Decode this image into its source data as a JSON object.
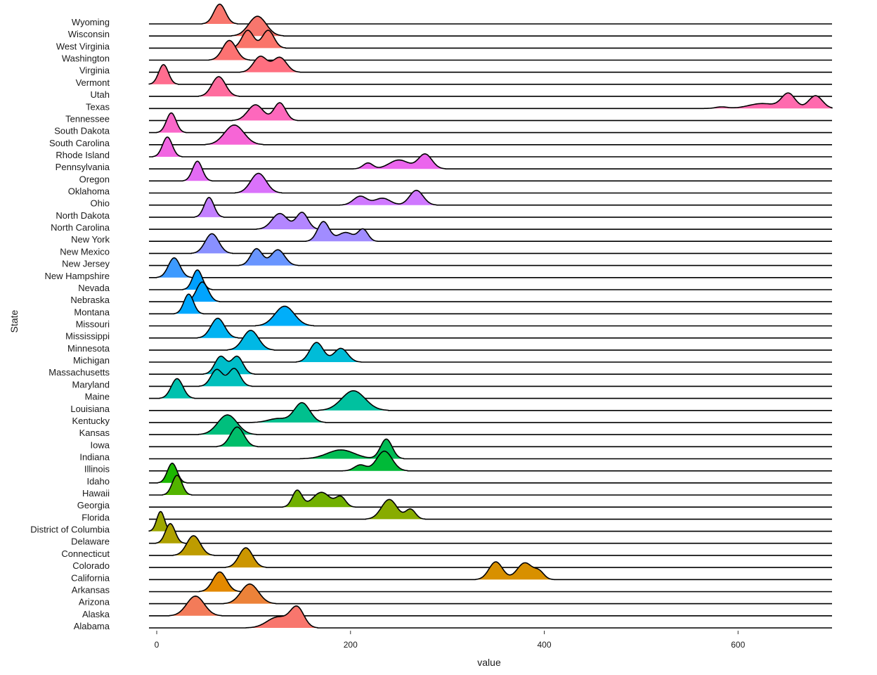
{
  "chart_data": {
    "type": "ridgeline",
    "title": "",
    "xlabel": "value",
    "ylabel": "State",
    "xlim": [
      -8,
      697
    ],
    "xticks": [
      0,
      200,
      400,
      600
    ],
    "grid": false,
    "legend": "none",
    "series": [
      {
        "name": "Alabama",
        "color": "#F8766D",
        "peaks": [
          [
            125,
            0.55,
            11
          ],
          [
            145,
            1.0,
            7
          ]
        ]
      },
      {
        "name": "Alaska",
        "color": "#F37B59",
        "peaks": [
          [
            40,
            1.0,
            9
          ]
        ]
      },
      {
        "name": "Arizona",
        "color": "#EC8239",
        "peaks": [
          [
            96,
            1.0,
            9
          ]
        ]
      },
      {
        "name": "Arkansas",
        "color": "#E38900",
        "peaks": [
          [
            65,
            1.0,
            7
          ]
        ]
      },
      {
        "name": "California",
        "color": "#D89000",
        "peaks": [
          [
            350,
            0.9,
            7
          ],
          [
            380,
            0.85,
            8
          ],
          [
            395,
            0.35,
            5
          ]
        ]
      },
      {
        "name": "Colorado",
        "color": "#CC9600",
        "peaks": [
          [
            92,
            1.0,
            7
          ]
        ]
      },
      {
        "name": "Connecticut",
        "color": "#BE9C00",
        "peaks": [
          [
            38,
            1.0,
            7
          ]
        ]
      },
      {
        "name": "Delaware",
        "color": "#AFA100",
        "peaks": [
          [
            14,
            1.0,
            5
          ]
        ]
      },
      {
        "name": "District of Columbia",
        "color": "#9DA700",
        "peaks": [
          [
            4,
            1.0,
            4
          ]
        ]
      },
      {
        "name": "Florida",
        "color": "#88AC00",
        "peaks": [
          [
            240,
            1.0,
            8
          ],
          [
            262,
            0.5,
            5
          ]
        ]
      },
      {
        "name": "Georgia",
        "color": "#71B000",
        "peaks": [
          [
            145,
            0.85,
            5
          ],
          [
            170,
            0.75,
            9
          ],
          [
            190,
            0.5,
            5
          ]
        ]
      },
      {
        "name": "Hawaii",
        "color": "#53B400",
        "peaks": [
          [
            21,
            1.0,
            5
          ]
        ]
      },
      {
        "name": "Idaho",
        "color": "#1CB800",
        "peaks": [
          [
            16,
            1.0,
            5
          ]
        ]
      },
      {
        "name": "Illinois",
        "color": "#00BA38",
        "peaks": [
          [
            210,
            0.3,
            6
          ],
          [
            235,
            1.0,
            8
          ]
        ]
      },
      {
        "name": "Indiana",
        "color": "#00BC54",
        "peaks": [
          [
            190,
            0.45,
            14
          ],
          [
            237,
            1.0,
            6
          ]
        ]
      },
      {
        "name": "Iowa",
        "color": "#00BE6A",
        "peaks": [
          [
            83,
            1.0,
            7
          ]
        ]
      },
      {
        "name": "Kansas",
        "color": "#00BF7D",
        "peaks": [
          [
            73,
            1.0,
            10
          ]
        ]
      },
      {
        "name": "Kentucky",
        "color": "#00C08E",
        "peaks": [
          [
            125,
            0.2,
            10
          ],
          [
            150,
            1.0,
            8
          ]
        ]
      },
      {
        "name": "Louisiana",
        "color": "#00C19F",
        "peaks": [
          [
            203,
            1.0,
            12
          ]
        ]
      },
      {
        "name": "Maine",
        "color": "#00C1AE",
        "peaks": [
          [
            21,
            1.0,
            6
          ]
        ]
      },
      {
        "name": "Maryland",
        "color": "#00C0BC",
        "peaks": [
          [
            62,
            0.85,
            6
          ],
          [
            80,
            0.9,
            6
          ]
        ]
      },
      {
        "name": "Massachusetts",
        "color": "#00BECA",
        "peaks": [
          [
            66,
            0.9,
            6
          ],
          [
            83,
            0.9,
            6
          ]
        ]
      },
      {
        "name": "Michigan",
        "color": "#00BCD8",
        "peaks": [
          [
            165,
            1.0,
            7
          ],
          [
            190,
            0.7,
            7
          ]
        ]
      },
      {
        "name": "Minnesota",
        "color": "#00B8E5",
        "peaks": [
          [
            97,
            1.0,
            8
          ]
        ]
      },
      {
        "name": "Mississippi",
        "color": "#00B3F2",
        "peaks": [
          [
            63,
            1.0,
            7
          ]
        ]
      },
      {
        "name": "Missouri",
        "color": "#00AEFA",
        "peaks": [
          [
            132,
            1.0,
            10
          ]
        ]
      },
      {
        "name": "Montana",
        "color": "#00A8FF",
        "peaks": [
          [
            33,
            1.0,
            5
          ]
        ]
      },
      {
        "name": "Nebraska",
        "color": "#00A4FF",
        "peaks": [
          [
            47,
            1.0,
            6
          ]
        ]
      },
      {
        "name": "Nevada",
        "color": "#009FFF",
        "peaks": [
          [
            42,
            1.0,
            5
          ]
        ]
      },
      {
        "name": "New Hampshire",
        "color": "#3D9AFF",
        "peaks": [
          [
            18,
            1.0,
            6
          ]
        ]
      },
      {
        "name": "New Jersey",
        "color": "#6995FF",
        "peaks": [
          [
            103,
            0.85,
            6
          ],
          [
            125,
            0.8,
            7
          ]
        ]
      },
      {
        "name": "New Mexico",
        "color": "#8990FF",
        "peaks": [
          [
            57,
            1.0,
            7
          ]
        ]
      },
      {
        "name": "New York",
        "color": "#A18CFF",
        "peaks": [
          [
            172,
            1.0,
            6
          ],
          [
            195,
            0.45,
            8
          ],
          [
            213,
            0.6,
            5
          ]
        ]
      },
      {
        "name": "North Carolina",
        "color": "#B386FF",
        "peaks": [
          [
            127,
            0.8,
            8
          ],
          [
            150,
            0.85,
            6
          ]
        ]
      },
      {
        "name": "North Dakota",
        "color": "#C27FFF",
        "peaks": [
          [
            54,
            1.0,
            5
          ]
        ]
      },
      {
        "name": "Ohio",
        "color": "#CF78FF",
        "peaks": [
          [
            210,
            0.45,
            7
          ],
          [
            233,
            0.35,
            8
          ],
          [
            268,
            0.75,
            7
          ]
        ]
      },
      {
        "name": "Oklahoma",
        "color": "#DA72FB",
        "peaks": [
          [
            105,
            1.0,
            8
          ]
        ]
      },
      {
        "name": "Oregon",
        "color": "#E36BF4",
        "peaks": [
          [
            42,
            1.0,
            5
          ]
        ]
      },
      {
        "name": "Pennsylvania",
        "color": "#EB65ED",
        "peaks": [
          [
            218,
            0.3,
            5
          ],
          [
            250,
            0.45,
            10
          ],
          [
            277,
            0.75,
            7
          ]
        ]
      },
      {
        "name": "Rhode Island",
        "color": "#F166E2",
        "peaks": [
          [
            11,
            1.0,
            5
          ]
        ]
      },
      {
        "name": "South Carolina",
        "color": "#F665D6",
        "peaks": [
          [
            80,
            1.0,
            10
          ]
        ]
      },
      {
        "name": "South Dakota",
        "color": "#FA67C9",
        "peaks": [
          [
            15,
            1.0,
            5
          ]
        ]
      },
      {
        "name": "Tennessee",
        "color": "#FD68BC",
        "peaks": [
          [
            102,
            0.8,
            8
          ],
          [
            127,
            0.9,
            6
          ]
        ]
      },
      {
        "name": "Texas",
        "color": "#FF6AAE",
        "peaks": [
          [
            583,
            0.08,
            6
          ],
          [
            625,
            0.25,
            14
          ],
          [
            652,
            0.75,
            7
          ],
          [
            680,
            0.65,
            7
          ]
        ]
      },
      {
        "name": "Utah",
        "color": "#FF6C9E",
        "peaks": [
          [
            64,
            1.0,
            7
          ]
        ]
      },
      {
        "name": "Vermont",
        "color": "#FF6D8F",
        "peaks": [
          [
            7,
            1.0,
            5
          ]
        ]
      },
      {
        "name": "Virginia",
        "color": "#FF6F80",
        "peaks": [
          [
            107,
            0.8,
            7
          ],
          [
            127,
            0.75,
            7
          ]
        ]
      },
      {
        "name": "Washington",
        "color": "#FD7272",
        "peaks": [
          [
            75,
            1.0,
            7
          ]
        ]
      },
      {
        "name": "West Virginia",
        "color": "#FA7469",
        "peaks": [
          [
            94,
            0.9,
            6
          ],
          [
            115,
            0.9,
            6
          ]
        ]
      },
      {
        "name": "Wisconsin",
        "color": "#F8766D",
        "peaks": [
          [
            104,
            1.0,
            9
          ]
        ]
      },
      {
        "name": "Wyoming",
        "color": "#F8766D",
        "peaks": [
          [
            65,
            1.0,
            6
          ]
        ]
      }
    ]
  }
}
